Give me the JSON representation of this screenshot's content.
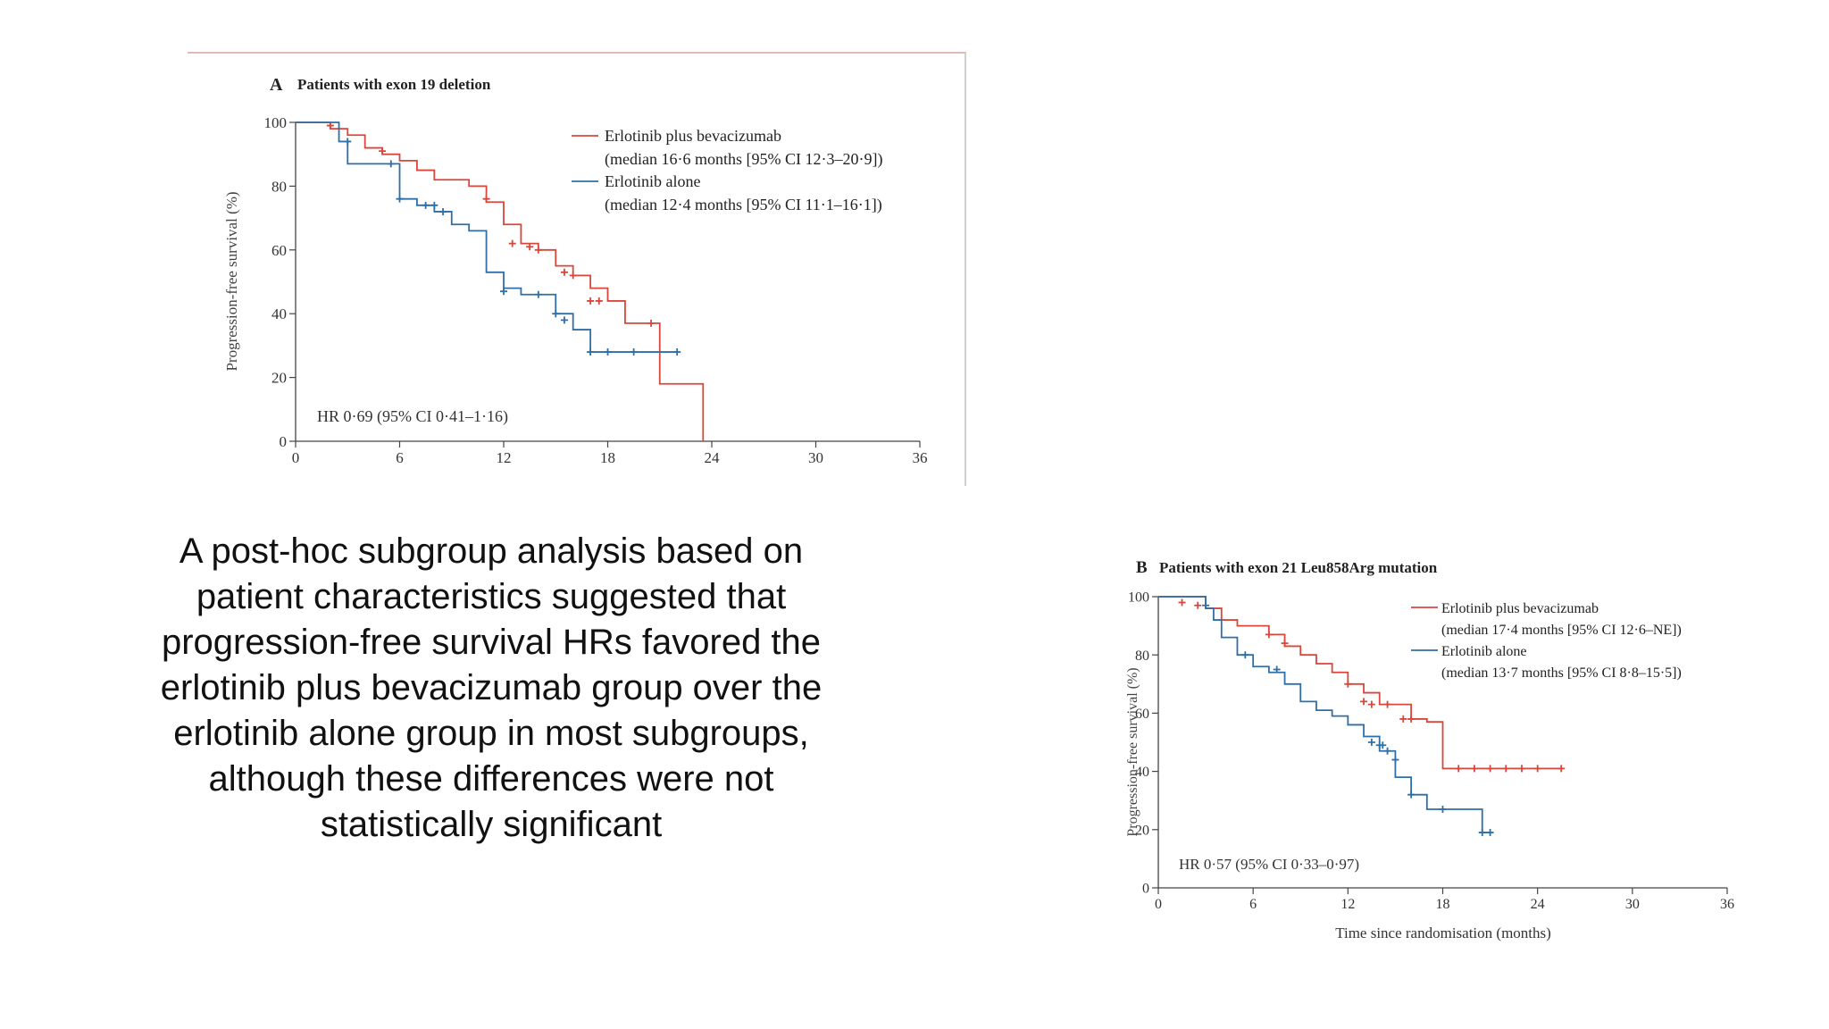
{
  "caption_lines": [
    "A post-hoc subgroup analysis based on",
    "patient  characteristics suggested that",
    "progression-free  survival HRs favored the",
    "erlotinib plus  bevacizumab group over the",
    "erlotinib alone  group in most subgroups,",
    "although these  differences were not",
    "statistically significant"
  ],
  "colors": {
    "combo": "#d9463b",
    "alone": "#2f6fa8",
    "axis": "#444444"
  },
  "chart_data": [
    {
      "type": "line",
      "panel": "A",
      "title": "Patients with exon 19 deletion",
      "xlabel": "",
      "ylabel": "Progression-free survival (%)",
      "xlim": [
        0,
        36
      ],
      "ylim": [
        0,
        100
      ],
      "xticks": [
        0,
        6,
        12,
        18,
        24,
        30,
        36
      ],
      "yticks": [
        0,
        20,
        40,
        60,
        80,
        100
      ],
      "legend_position": "top-right",
      "annotation": "HR 0·69 (95% CI 0·41–1·16)",
      "series": [
        {
          "name": "Erlotinib plus bevacizumab",
          "legend_note": "(median 16·6 months [95% CI 12·3–20·9])",
          "color_key": "combo",
          "x": [
            0,
            2,
            3,
            4,
            5,
            6,
            7,
            8,
            10,
            11,
            12,
            13,
            14,
            15,
            16,
            17,
            18,
            19,
            21,
            23.5
          ],
          "y": [
            100,
            98,
            96,
            92,
            90,
            88,
            85,
            82,
            80,
            75,
            68,
            62,
            60,
            55,
            52,
            48,
            44,
            37,
            18,
            0
          ],
          "censor_x": [
            2,
            5,
            11,
            12.5,
            13.5,
            14,
            15.5,
            16,
            17,
            17.5,
            20.5
          ],
          "censor_y": [
            99,
            91,
            76,
            62,
            61,
            60,
            53,
            52,
            44,
            44,
            37
          ]
        },
        {
          "name": "Erlotinib alone",
          "legend_note": "(median 12·4 months [95% CI 11·1–16·1])",
          "color_key": "alone",
          "x": [
            0,
            2.5,
            3,
            5,
            6,
            7,
            8,
            9,
            10,
            11,
            12,
            13,
            14,
            15,
            16,
            17,
            18,
            20,
            22
          ],
          "y": [
            100,
            94,
            87,
            87,
            76,
            74,
            72,
            68,
            66,
            53,
            48,
            46,
            46,
            40,
            35,
            28,
            28,
            28,
            28
          ],
          "censor_x": [
            3,
            5.5,
            6,
            7.5,
            8,
            8.5,
            12,
            14,
            15,
            15.5,
            17,
            18,
            19.5,
            22
          ],
          "censor_y": [
            94,
            87,
            76,
            74,
            74,
            72,
            47,
            46,
            40,
            38,
            28,
            28,
            28,
            28
          ]
        }
      ]
    },
    {
      "type": "line",
      "panel": "B",
      "title": "Patients with exon 21 Leu858Arg mutation",
      "xlabel": "Time since randomisation (months)",
      "ylabel": "Progression-free survival (%)",
      "xlim": [
        0,
        36
      ],
      "ylim": [
        0,
        100
      ],
      "xticks": [
        0,
        6,
        12,
        18,
        24,
        30,
        36
      ],
      "yticks": [
        0,
        20,
        40,
        60,
        80,
        100
      ],
      "legend_position": "top-right",
      "annotation": "HR 0·57 (95% CI 0·33–0·97)",
      "series": [
        {
          "name": "Erlotinib plus bevacizumab",
          "legend_note": "(median 17·4 months [95% CI 12·6–NE])",
          "color_key": "combo",
          "x": [
            0,
            3,
            4,
            5,
            7,
            8,
            9,
            10,
            11,
            12,
            13,
            14,
            15,
            16,
            17,
            18,
            21,
            25.5
          ],
          "y": [
            100,
            96,
            92,
            90,
            87,
            83,
            80,
            77,
            74,
            70,
            67,
            63,
            63,
            58,
            57,
            41,
            41,
            41
          ],
          "censor_x": [
            1.5,
            2.5,
            7,
            8,
            12,
            13,
            13.5,
            14.5,
            15.5,
            16,
            19,
            20,
            21,
            22,
            23,
            24,
            25.5
          ],
          "censor_y": [
            98,
            97,
            87,
            84,
            70,
            64,
            63,
            63,
            58,
            58,
            41,
            41,
            41,
            41,
            41,
            41,
            41
          ]
        },
        {
          "name": "Erlotinib alone",
          "legend_note": "(median 13·7 months [95% CI 8·8–15·5])",
          "color_key": "alone",
          "x": [
            0,
            3,
            3.5,
            4,
            5,
            6,
            7,
            8,
            9,
            10,
            11,
            12,
            13,
            14,
            15,
            16,
            17,
            20,
            20.5,
            21
          ],
          "y": [
            100,
            96,
            92,
            86,
            80,
            76,
            74,
            70,
            64,
            61,
            59,
            56,
            52,
            47,
            38,
            32,
            27,
            27,
            19,
            19
          ],
          "censor_x": [
            3,
            5.5,
            7.5,
            13.5,
            14,
            14.2,
            14.5,
            15,
            16,
            18,
            20.5,
            21
          ],
          "censor_y": [
            97,
            80,
            75,
            50,
            49,
            49,
            47,
            44,
            32,
            27,
            19,
            19
          ]
        }
      ]
    }
  ]
}
